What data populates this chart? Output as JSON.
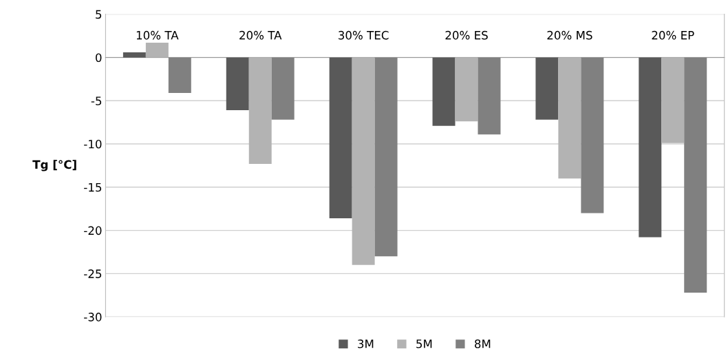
{
  "chart_data": {
    "type": "bar",
    "ylabel": "Tg [°C]",
    "categories": [
      "10% TA",
      "20% TA",
      "30% TEC",
      "20% ES",
      "20% MS",
      "20% EP"
    ],
    "series": [
      {
        "name": "3M",
        "color": "#595959",
        "values": [
          0.6,
          -6.1,
          -18.6,
          -7.9,
          -7.2,
          -20.8
        ]
      },
      {
        "name": "5M",
        "color": "#b3b3b3",
        "values": [
          1.7,
          -12.3,
          -24.0,
          -7.4,
          -14.0,
          -9.9
        ]
      },
      {
        "name": "8M",
        "color": "#808080",
        "values": [
          -4.1,
          -7.2,
          -23.0,
          -8.9,
          -18.0,
          -27.2
        ]
      }
    ],
    "ylim": [
      -30,
      5
    ],
    "yticks": [
      -30,
      -25,
      -20,
      -15,
      -10,
      -5,
      0,
      5
    ],
    "grid": "y",
    "legend": "bottom"
  }
}
